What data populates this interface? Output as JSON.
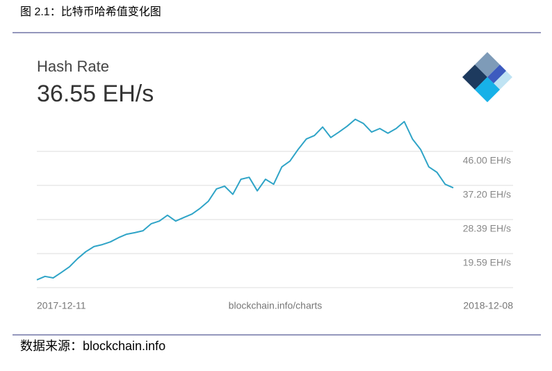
{
  "caption": "图 2.1：比特币哈希值变化图",
  "source": "数据来源：blockchain.info",
  "chart_data": {
    "type": "line",
    "title": "Hash Rate",
    "subtitle": "36.55 EH/s",
    "annotation": "blockchain.info/charts",
    "xlim": [
      "2017-12-11",
      "2018-12-08"
    ],
    "series": [
      {
        "name": "Hash Rate",
        "color": "#2fa4c7",
        "values": [
          12.8,
          13.7,
          13.3,
          14.7,
          16.2,
          18.3,
          20.1,
          21.4,
          21.9,
          22.6,
          23.7,
          24.6,
          25.0,
          25.5,
          27.3,
          28.0,
          29.5,
          28.0,
          28.9,
          29.8,
          31.3,
          33.1,
          36.3,
          37.0,
          34.9,
          38.8,
          39.3,
          35.8,
          38.8,
          37.5,
          42.0,
          43.5,
          46.5,
          49.2,
          50.1,
          52.3,
          49.6,
          51.0,
          52.5,
          54.3,
          53.2,
          51.0,
          51.9,
          50.7,
          51.9,
          53.7,
          49.2,
          46.5,
          42.0,
          40.6,
          37.5,
          36.6
        ]
      }
    ],
    "ylim": [
      10.79,
      55.5
    ],
    "yticks": [
      {
        "value": 19.59,
        "label": "19.59 EH/s"
      },
      {
        "value": 28.39,
        "label": "28.39 EH/s"
      },
      {
        "value": 37.2,
        "label": "37.20 EH/s"
      },
      {
        "value": 46.0,
        "label": "46.00 EH/s"
      }
    ],
    "grid": true
  }
}
